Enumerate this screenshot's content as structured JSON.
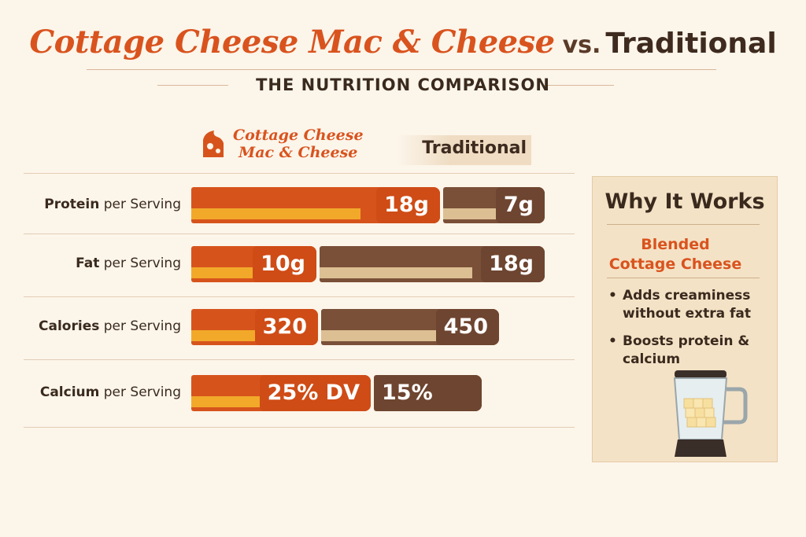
{
  "header": {
    "title_main": "Cottage Cheese Mac & Cheese",
    "title_vs": "vs.",
    "title_trad": "Traditional",
    "subtitle": "THE NUTRITION COMPARISON"
  },
  "legend": {
    "cottage_line1": "Cottage Cheese",
    "cottage_line2": "Mac & Cheese",
    "traditional": "Traditional",
    "icon": "cheese-wedge-icon"
  },
  "colors": {
    "cottage": "#d6541c",
    "cottage_accent": "#f2a92a",
    "traditional": "#7a5038",
    "traditional_accent": "#dcbf93",
    "background": "#fcf5ea"
  },
  "rows": [
    {
      "bold": "Protein",
      "rest": " per Serving",
      "cottage_label": "18g",
      "trad_label": "7g"
    },
    {
      "bold": "Fat",
      "rest": " per Serving",
      "cottage_label": "10g",
      "trad_label": "18g"
    },
    {
      "bold": "Calories",
      "rest": " per Serving",
      "cottage_label": "320",
      "trad_label": "450"
    },
    {
      "bold": "Calcium",
      "rest": " per Serving",
      "cottage_label": "25% DV",
      "trad_label": "15% DV"
    }
  ],
  "panel": {
    "title": "Why It Works",
    "subtitle": "Blended Cottage Cheese",
    "bullets": [
      "Adds creaminess without extra fat",
      "Boosts protein & calcium"
    ],
    "icon": "blender-icon"
  },
  "chart_data": {
    "type": "bar",
    "title": "Cottage Cheese Mac & Cheese vs. Traditional",
    "subtitle": "THE NUTRITION COMPARISON",
    "categories": [
      "Protein per Serving",
      "Fat per Serving",
      "Calories per Serving",
      "Calcium per Serving"
    ],
    "series": [
      {
        "name": "Cottage Cheese Mac & Cheese",
        "values": [
          18,
          10,
          320,
          25
        ],
        "labels": [
          "18g",
          "10g",
          "320",
          "25% DV"
        ]
      },
      {
        "name": "Traditional",
        "values": [
          7,
          18,
          450,
          15
        ],
        "labels": [
          "7g",
          "18g",
          "450",
          "15% DV"
        ]
      }
    ],
    "grid": false,
    "legend": "top"
  }
}
